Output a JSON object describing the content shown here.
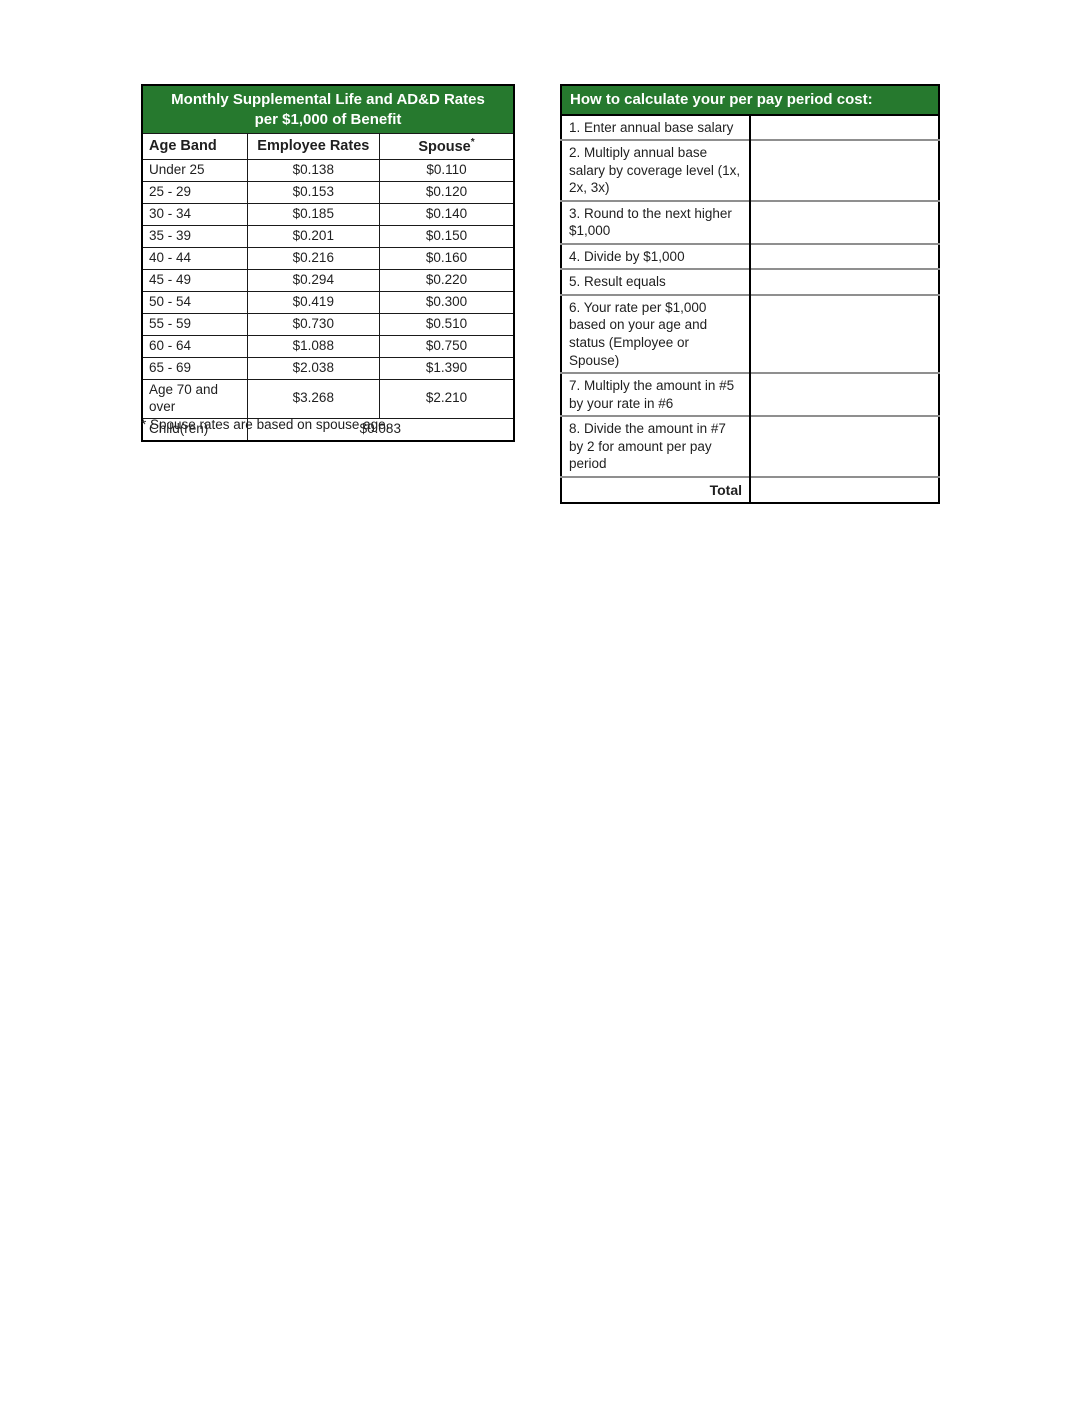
{
  "colors": {
    "header_green": "#26792e",
    "header_text": "#ffffff",
    "border_dark": "#000000",
    "border_gray": "#8f8f8f"
  },
  "rates_table": {
    "title_line1": "Monthly Supplemental Life and AD&D Rates",
    "title_line2": "per $1,000 of Benefit",
    "columns": {
      "age_band": "Age Band",
      "employee_rates": "Employee Rates",
      "spouse": "Spouse",
      "spouse_marker": "*"
    },
    "rows": [
      {
        "age_band": "Under 25",
        "employee_rate": "$0.138",
        "spouse_rate": "$0.110"
      },
      {
        "age_band": "25 - 29",
        "employee_rate": "$0.153",
        "spouse_rate": "$0.120"
      },
      {
        "age_band": "30 - 34",
        "employee_rate": "$0.185",
        "spouse_rate": "$0.140"
      },
      {
        "age_band": "35 - 39",
        "employee_rate": "$0.201",
        "spouse_rate": "$0.150"
      },
      {
        "age_band": "40 - 44",
        "employee_rate": "$0.216",
        "spouse_rate": "$0.160"
      },
      {
        "age_band": "45 - 49",
        "employee_rate": "$0.294",
        "spouse_rate": "$0.220"
      },
      {
        "age_band": "50 - 54",
        "employee_rate": "$0.419",
        "spouse_rate": "$0.300"
      },
      {
        "age_band": "55 - 59",
        "employee_rate": "$0.730",
        "spouse_rate": "$0.510"
      },
      {
        "age_band": "60 - 64",
        "employee_rate": "$1.088",
        "spouse_rate": "$0.750"
      },
      {
        "age_band": "65 - 69",
        "employee_rate": "$2.038",
        "spouse_rate": "$1.390"
      },
      {
        "age_band": "Age 70 and over",
        "employee_rate": "$3.268",
        "spouse_rate": "$2.210"
      }
    ],
    "children_row": {
      "label": "Child(ren)",
      "rate": "$0.083"
    },
    "footnote": "* Spouse rates are based on spouse age."
  },
  "calc_table": {
    "title": "How to calculate your per pay period cost:",
    "steps": [
      {
        "label": "1. Enter annual base salary",
        "value": "",
        "lines": "single"
      },
      {
        "label": "2. Multiply annual base salary by coverage level (1x, 2x, 3x)",
        "value": "",
        "lines": "double"
      },
      {
        "label": "3. Round to the next higher $1,000",
        "value": "",
        "lines": "single"
      },
      {
        "label": "4. Divide by $1,000",
        "value": "",
        "lines": "single"
      },
      {
        "label": "5. Result equals",
        "value": "",
        "lines": "single"
      },
      {
        "label": "6. Your rate per $1,000 based on your age and status (Employee or Spouse)",
        "value": "",
        "lines": "double"
      },
      {
        "label": "7. Multiply the amount in #5 by your rate in #6",
        "value": "",
        "lines": "single"
      },
      {
        "label": "8. Divide the amount in #7 by 2 for amount per pay period",
        "value": "",
        "lines": "double"
      }
    ],
    "total_label": "Total",
    "total_value": ""
  }
}
